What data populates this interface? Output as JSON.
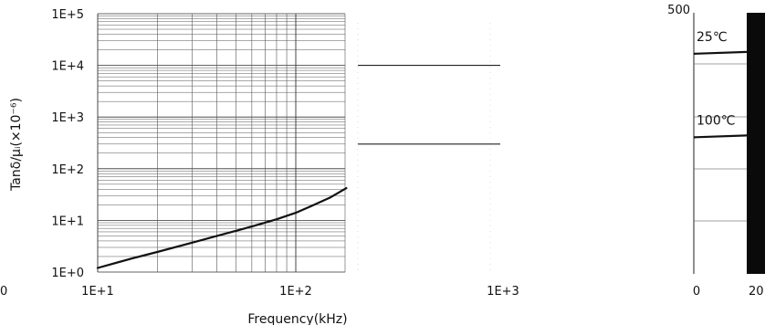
{
  "chart_data": [
    {
      "type": "line",
      "scale": "log-log",
      "title": "",
      "xlabel": "Frequency(kHz)",
      "ylabel": "Tanδ/μᵢ(×10⁻⁶)",
      "xlim": [
        10,
        1000
      ],
      "ylim": [
        1,
        100000
      ],
      "grid": true,
      "x_ticks": [
        "1E+1",
        "1E+2",
        "1E+3"
      ],
      "y_ticks": [
        "1E+0",
        "1E+1",
        "1E+2",
        "1E+3",
        "1E+4",
        "1E+5"
      ],
      "series": [
        {
          "x": [
            10,
            15,
            20,
            30,
            40,
            50,
            60,
            80,
            100,
            120,
            150,
            180
          ],
          "y": [
            1.2,
            1.85,
            2.45,
            3.7,
            5.0,
            6.3,
            7.6,
            10.5,
            14,
            19,
            28,
            42
          ]
        }
      ]
    },
    {
      "type": "line",
      "partial": true,
      "x_ticks": [
        "0",
        "20"
      ],
      "y_ticks": [
        "500"
      ],
      "series": [
        {
          "name": "25℃",
          "y_frac": 0.85
        },
        {
          "name": "100℃",
          "y_frac": 0.53
        }
      ]
    }
  ],
  "left_edge_label": "0"
}
